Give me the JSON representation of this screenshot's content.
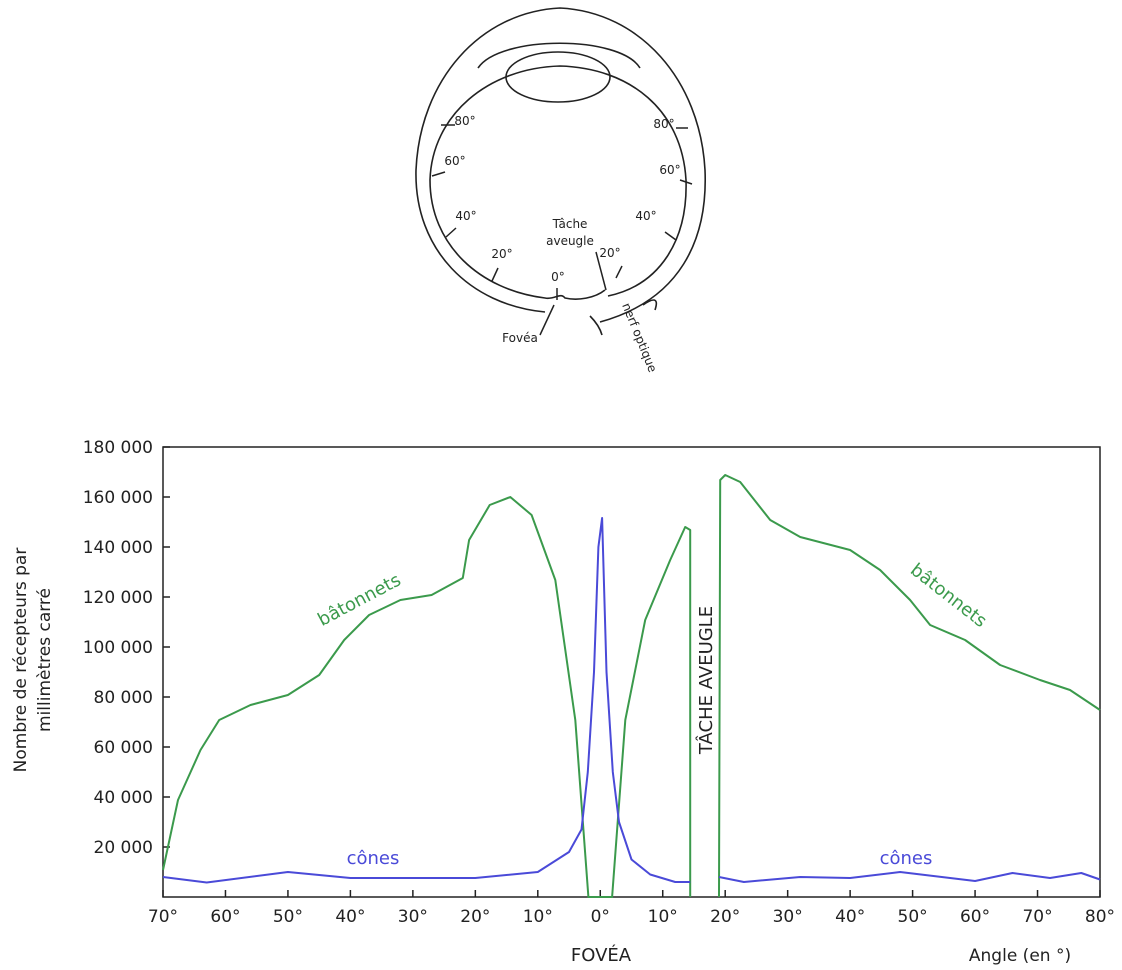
{
  "eye_diagram": {
    "angles_left": [
      "80°",
      "60°",
      "40°",
      "20°"
    ],
    "center_angle": "0°",
    "angles_right": [
      "20°",
      "40°",
      "60°",
      "80°"
    ],
    "blind_spot": [
      "Tâche",
      "aveugle"
    ],
    "fovea": "Fovéa",
    "optic_nerve": "nerf optique"
  },
  "chart_data": {
    "type": "line",
    "y_label": [
      "Nombre de récepteurs par",
      "millimètres carré"
    ],
    "x_label": "Angle (en °)",
    "annotations": [
      "bâtonnets",
      "bâtonnets",
      "cônes",
      "cônes",
      "TÂCHE AVEUGLE",
      "FOVÉA"
    ],
    "xlim": [
      -70,
      80
    ],
    "ylim": [
      0,
      180000
    ],
    "xticks": [
      {
        "value": -70,
        "label": "70°"
      },
      {
        "value": -60,
        "label": "60°"
      },
      {
        "value": -50,
        "label": "50°"
      },
      {
        "value": -40,
        "label": "40°"
      },
      {
        "value": -30,
        "label": "30°"
      },
      {
        "value": -20,
        "label": "20°"
      },
      {
        "value": -10,
        "label": "10°"
      },
      {
        "value": 0,
        "label": "0°"
      },
      {
        "value": 10,
        "label": "10°"
      },
      {
        "value": 20,
        "label": "20°"
      },
      {
        "value": 30,
        "label": "30°"
      },
      {
        "value": 40,
        "label": "40°"
      },
      {
        "value": 50,
        "label": "50°"
      },
      {
        "value": 60,
        "label": "60°"
      },
      {
        "value": 70,
        "label": "70°"
      },
      {
        "value": 80,
        "label": "80°"
      }
    ],
    "yticks": [
      {
        "value": 20000,
        "label": "20 000"
      },
      {
        "value": 40000,
        "label": "40 000"
      },
      {
        "value": 60000,
        "label": "60 000"
      },
      {
        "value": 80000,
        "label": "80 000"
      },
      {
        "value": 100000,
        "label": "100 000"
      },
      {
        "value": 120000,
        "label": "120 000"
      },
      {
        "value": 140000,
        "label": "140 000"
      },
      {
        "value": 160000,
        "label": "160 000"
      },
      {
        "value": 180000,
        "label": "180 000"
      }
    ],
    "series": [
      {
        "color": "#3b9a4c",
        "x": [
          -70,
          -67.6,
          -64,
          -61,
          -56,
          -50,
          -45,
          -41,
          -37,
          -32,
          -27,
          -22,
          -21,
          -17.7,
          -14.4,
          -11,
          -7.2,
          -4,
          -1.9,
          1.9,
          4,
          7.2,
          11.2,
          13.6,
          14.4,
          14.4,
          16.7,
          19,
          19.2,
          20,
          22.4,
          27.2,
          32,
          40,
          44.8,
          49.6,
          52.8,
          58.4,
          64,
          70.4,
          75.2,
          80
        ],
        "values": [
          10800,
          38800,
          58800,
          70800,
          76800,
          80800,
          88800,
          102800,
          112800,
          118800,
          120800,
          127600,
          142800,
          156800,
          160000,
          152800,
          126800,
          70800,
          0,
          0,
          70800,
          110800,
          134800,
          148000,
          146800,
          0,
          null,
          0,
          166800,
          168800,
          166000,
          150800,
          144000,
          138800,
          130800,
          118800,
          108800,
          102800,
          92800,
          86800,
          82800,
          74800
        ]
      },
      {
        "color": "#4a4ad8",
        "x": [
          -70,
          -63,
          -50,
          -40,
          -20,
          -10,
          -5,
          -3,
          -2,
          -1,
          -0.3,
          0.3,
          1,
          2,
          3,
          5,
          8,
          12,
          14.4,
          16.7,
          19,
          23,
          32,
          40,
          48,
          60,
          66,
          72,
          77,
          80
        ],
        "values": [
          8000,
          5800,
          10000,
          7600,
          7600,
          10000,
          18000,
          27000,
          50000,
          90000,
          140000,
          151600,
          90000,
          50000,
          30000,
          15000,
          9000,
          6000,
          6000,
          null,
          8000,
          6000,
          8000,
          7600,
          10000,
          6400,
          9600,
          7600,
          9600,
          7000
        ]
      }
    ]
  }
}
